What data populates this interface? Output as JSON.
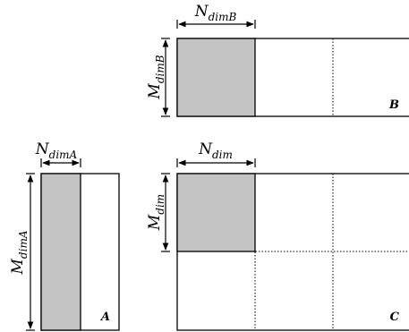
{
  "matrix_a": {
    "label": "A",
    "n_dim": {
      "main": "N",
      "sub": "dimA"
    },
    "m_dim": {
      "main": "M",
      "sub": "dimA"
    }
  },
  "matrix_b": {
    "label": "B",
    "n_dim": {
      "main": "N",
      "sub": "dimB"
    },
    "m_dim": {
      "main": "M",
      "sub": "dimB"
    }
  },
  "matrix_c": {
    "label": "C",
    "n_dim": {
      "main": "N",
      "sub": "dim"
    },
    "m_dim": {
      "main": "M",
      "sub": "dim"
    }
  },
  "colors": {
    "shade": "#c4c4c4",
    "line": "#000000"
  }
}
